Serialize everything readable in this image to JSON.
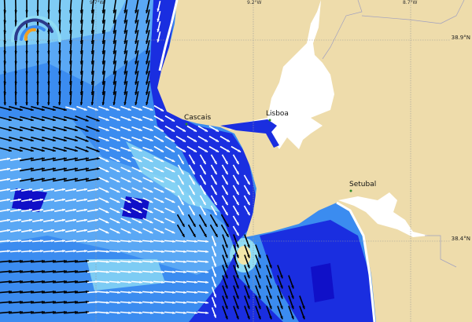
{
  "map": {
    "places": [
      {
        "name": "Cascais"
      },
      {
        "name": "Lisboa"
      },
      {
        "name": "Setubal"
      }
    ],
    "longitude_labels": [
      "9.7°W",
      "9.2°W",
      "8.7°W"
    ],
    "latitude_labels": [
      "38.9°N",
      "38.4°N"
    ],
    "colors": {
      "land": "#eedcab",
      "ocean_light": "#8fdcf5",
      "ocean_mid": "#3b8cf0",
      "ocean_deep": "#1a2ee0",
      "ocean_dark": "#1010c8",
      "hotspot": "#f2e6a8",
      "arrow_strong": "#000000",
      "arrow_weak": "#ffffff",
      "logo_orange": "#f2a020"
    },
    "layer": "surface-current-arrows"
  }
}
